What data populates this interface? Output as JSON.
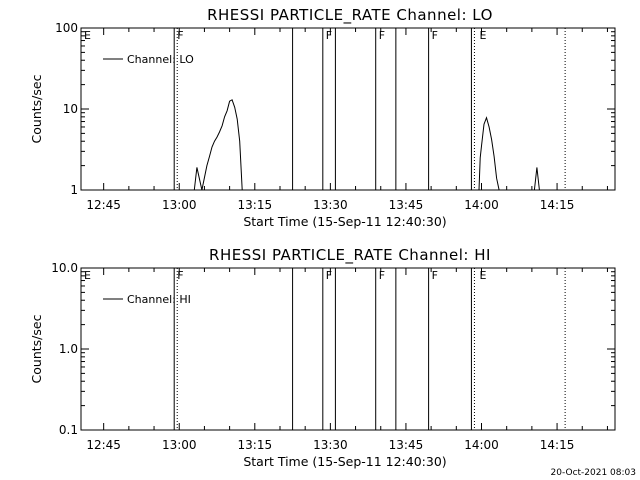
{
  "footer": {
    "timestamp": "20-Oct-2021 08:03"
  },
  "chart_data": [
    {
      "type": "line",
      "title": "RHESSI PARTICLE_RATE Channel: LO",
      "xlabel": "Start Time (15-Sep-11 12:40:30)",
      "ylabel": "Counts/sec",
      "yscale": "log",
      "ylim": [
        1,
        100
      ],
      "xlim_minutes": [
        "12:40:30",
        "14:26:30"
      ],
      "x_ticks": [
        "12:45",
        "13:00",
        "13:15",
        "13:30",
        "13:45",
        "14:00",
        "14:15"
      ],
      "y_ticks": [
        "1",
        "10",
        "100"
      ],
      "legend": {
        "label": "Channel: LO",
        "placement": "top-left"
      },
      "flag_labels": [
        {
          "text": "E",
          "time": "12:40:30"
        },
        {
          "text": "F",
          "time": "12:59:00"
        },
        {
          "text": "F",
          "time": "13:28:30"
        },
        {
          "text": "F",
          "time": "13:39:00"
        },
        {
          "text": "F",
          "time": "13:49:30"
        },
        {
          "text": "E",
          "time": "13:59:00"
        }
      ],
      "solid_lines": [
        "12:59:00",
        "13:22:30",
        "13:28:30",
        "13:31:00",
        "13:39:00",
        "13:43:00",
        "13:49:30",
        "13:58:00"
      ],
      "dotted_lines": [
        "12:59:30",
        "13:58:30",
        "14:16:30"
      ],
      "series": [
        {
          "name": "Channel: LO",
          "x": [
            "13:03:00",
            "13:03:30",
            "13:04:30",
            "13:05:30",
            "13:06:00",
            "13:06:30",
            "13:07:00",
            "13:07:30",
            "13:08:00",
            "13:08:30",
            "13:09:00",
            "13:09:30",
            "13:10:00",
            "13:10:30",
            "13:11:00",
            "13:11:30",
            "13:12:00",
            "13:12:30",
            "13:59:30",
            "13:59:45",
            "14:00:00",
            "14:00:30",
            "14:01:00",
            "14:01:30",
            "14:02:00",
            "14:02:30",
            "14:03:00",
            "14:03:30",
            "14:10:30",
            "14:11:00",
            "14:11:30"
          ],
          "y": [
            1,
            1.9,
            1.0,
            2.0,
            2.6,
            3.4,
            4.0,
            4.5,
            5.2,
            6.2,
            8.0,
            9.5,
            12.5,
            13.0,
            10.5,
            7.5,
            4.0,
            1.0,
            1,
            2.5,
            3.5,
            6.5,
            7.8,
            6.0,
            4.2,
            2.6,
            1.4,
            1,
            1,
            1.9,
            1
          ]
        }
      ]
    },
    {
      "type": "line",
      "title": "RHESSI PARTICLE_RATE Channel: HI",
      "xlabel": "Start Time (15-Sep-11 12:40:30)",
      "ylabel": "Counts/sec",
      "yscale": "log",
      "ylim": [
        0.1,
        10
      ],
      "xlim_minutes": [
        "12:40:30",
        "14:26:30"
      ],
      "x_ticks": [
        "12:45",
        "13:00",
        "13:15",
        "13:30",
        "13:45",
        "14:00",
        "14:15"
      ],
      "y_ticks": [
        "0.1",
        "1.0",
        "10.0"
      ],
      "legend": {
        "label": "Channel: HI",
        "placement": "top-left"
      },
      "flag_labels": [
        {
          "text": "E",
          "time": "12:40:30"
        },
        {
          "text": "F",
          "time": "12:59:00"
        },
        {
          "text": "F",
          "time": "13:28:30"
        },
        {
          "text": "F",
          "time": "13:39:00"
        },
        {
          "text": "F",
          "time": "13:49:30"
        },
        {
          "text": "E",
          "time": "13:59:00"
        }
      ],
      "solid_lines": [
        "12:59:00",
        "13:22:30",
        "13:28:30",
        "13:31:00",
        "13:39:00",
        "13:43:00",
        "13:49:30",
        "13:58:00"
      ],
      "dotted_lines": [
        "12:59:30",
        "13:58:30",
        "14:16:30"
      ],
      "series": [
        {
          "name": "Channel: HI",
          "x": [],
          "y": []
        }
      ]
    }
  ]
}
